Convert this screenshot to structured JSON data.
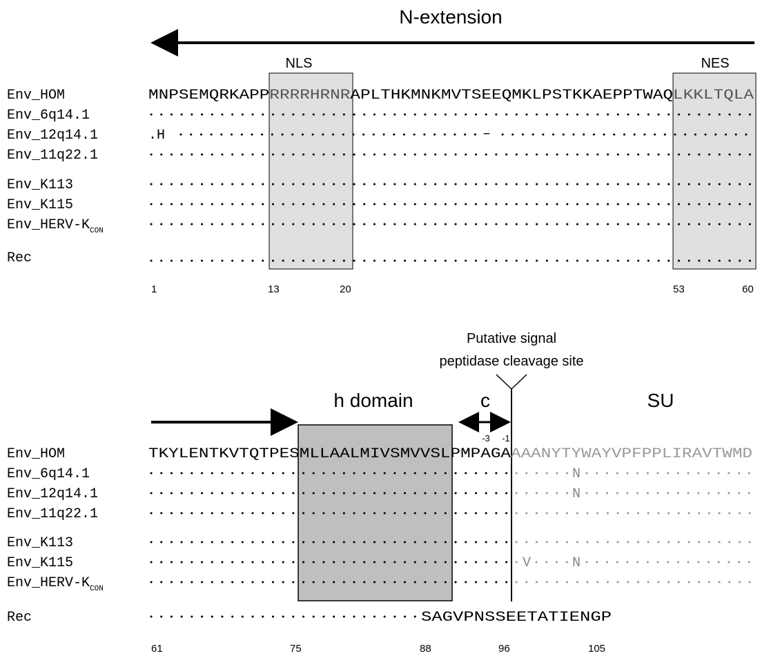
{
  "colors": {
    "box_fill": "#e0e0e0",
    "h_domain_fill": "#bfbfbf",
    "su_grey": "#888888",
    "text": "#000000"
  },
  "panel1": {
    "title": "N-extension",
    "nls_label": "NLS",
    "nes_label": "NES",
    "names": [
      "Env_HOM",
      "Env_6q14.1",
      "Env_12q14.1",
      "Env_11q22.1",
      "Env_K113",
      "Env_K115",
      "Env_HERV-K",
      "Rec"
    ],
    "herv_subscript": "CON",
    "hom_seq_a": "MNPSEMQRKAPP",
    "hom_seq_nls": "RRRRHRNR",
    "hom_seq_b": "APLTHKMNKMVTSEEQMKLPSTKKAEPPTWAQ",
    "hom_seq_nes": "LKKLTQLA",
    "row_12q_a": ".H",
    "row_12q_gap": "–",
    "positions": [
      "1",
      "13",
      "20",
      "53",
      "60"
    ]
  },
  "panel2": {
    "cleavage_label_1": "Putative signal",
    "cleavage_label_2": "peptidase cleavage site",
    "h_domain_label": "h domain",
    "c_label": "c",
    "su_label": "SU",
    "minus3": "-3",
    "minus1": "-1",
    "names": [
      "Env_HOM",
      "Env_6q14.1",
      "Env_12q14.1",
      "Env_11q22.1",
      "Env_K113",
      "Env_K115",
      "Env_HERV-K",
      "Rec"
    ],
    "herv_subscript": "CON",
    "hom_seq_a": "TKYLENTKVTQTPES",
    "hom_seq_h": "MLLAALMIVSMVVSL",
    "hom_seq_c": "PMPAGA",
    "hom_seq_su": "AAANYTYWAYVPFPPLIRAVTWMD",
    "mut_N": "N",
    "mut_V": "V",
    "rec_tail": "SAGVPNSSEETATIENGP",
    "positions": [
      "61",
      "75",
      "88",
      "96",
      "105"
    ]
  }
}
